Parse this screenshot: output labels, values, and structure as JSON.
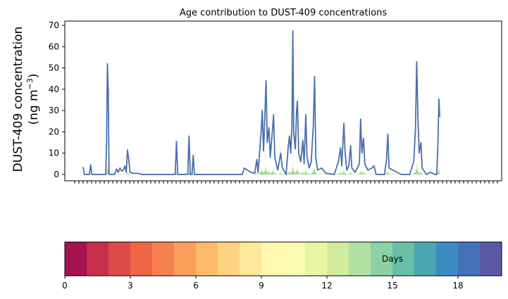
{
  "chart_data": [
    {
      "type": "area",
      "title": "Age contribution to DUST-409 concentrations",
      "ylabel_line1": "DUST-409 concentration",
      "ylabel_line2_prefix": "(ng m",
      "ylabel_line2_sup": "−3",
      "ylabel_line2_suffix": ")",
      "ylim": [
        -3,
        72
      ],
      "yticks": [
        0,
        10,
        20,
        30,
        40,
        50,
        60,
        70
      ],
      "grid": false,
      "x_index_range": [
        0,
        100
      ],
      "series": [
        {
          "values": [
            [
              0,
              3.5
            ],
            [
              0.3,
              0
            ],
            [
              1.5,
              0
            ],
            [
              1.8,
              4.5
            ],
            [
              2.1,
              0
            ],
            [
              4,
              0
            ],
            [
              5.4,
              0
            ],
            [
              5.6,
              15
            ],
            [
              5.8,
              52
            ],
            [
              6.0,
              40
            ],
            [
              6.2,
              0
            ],
            [
              7.5,
              0
            ],
            [
              8,
              2.5
            ],
            [
              8.4,
              1
            ],
            [
              8.8,
              3
            ],
            [
              9.2,
              1.5
            ],
            [
              9.6,
              2
            ],
            [
              10,
              4
            ],
            [
              10.3,
              1
            ],
            [
              10.6,
              11.5
            ],
            [
              10.9,
              7
            ],
            [
              11.2,
              1
            ],
            [
              12,
              0.5
            ],
            [
              13,
              0.5
            ],
            [
              14,
              0
            ],
            [
              22,
              0
            ],
            [
              22.3,
              15.5
            ],
            [
              22.6,
              0
            ],
            [
              25,
              0
            ],
            [
              25.3,
              18
            ],
            [
              25.6,
              0
            ],
            [
              26,
              0
            ],
            [
              26.3,
              9
            ],
            [
              26.6,
              0
            ],
            [
              38,
              0
            ],
            [
              38.5,
              3
            ],
            [
              40,
              1
            ],
            [
              41,
              0.5
            ],
            [
              41.5,
              7
            ],
            [
              41.8,
              1
            ],
            [
              42.5,
              19
            ],
            [
              42.8,
              30
            ],
            [
              43.1,
              11
            ],
            [
              43.4,
              26
            ],
            [
              43.7,
              44
            ],
            [
              44,
              15
            ],
            [
              44.4,
              22
            ],
            [
              44.7,
              8
            ],
            [
              45.2,
              20
            ],
            [
              45.5,
              28
            ],
            [
              45.8,
              8
            ],
            [
              46.5,
              2
            ],
            [
              47.2,
              10
            ],
            [
              47.6,
              3
            ],
            [
              48.5,
              0
            ],
            [
              49,
              13
            ],
            [
              49.3,
              18
            ],
            [
              49.6,
              10
            ],
            [
              49.9,
              23
            ],
            [
              50.1,
              67.5
            ],
            [
              50.3,
              20
            ],
            [
              50.7,
              12
            ],
            [
              51.0,
              30
            ],
            [
              51.2,
              34.5
            ],
            [
              51.5,
              10
            ],
            [
              52,
              6
            ],
            [
              52.5,
              16
            ],
            [
              52.8,
              5
            ],
            [
              53.2,
              28
            ],
            [
              53.5,
              8
            ],
            [
              54,
              3
            ],
            [
              54.5,
              6
            ],
            [
              55,
              23
            ],
            [
              55.3,
              46
            ],
            [
              55.6,
              8
            ],
            [
              56,
              2
            ],
            [
              57,
              3
            ],
            [
              58,
              0.5
            ],
            [
              60,
              0
            ],
            [
              61,
              6
            ],
            [
              61.5,
              12.5
            ],
            [
              61.8,
              4
            ],
            [
              62.3,
              24
            ],
            [
              62.6,
              10
            ],
            [
              63,
              2
            ],
            [
              63.5,
              4
            ],
            [
              63.9,
              13.5
            ],
            [
              64.2,
              3
            ],
            [
              65,
              1
            ],
            [
              66,
              5
            ],
            [
              66.3,
              26
            ],
            [
              66.6,
              10
            ],
            [
              67,
              17
            ],
            [
              67.3,
              5
            ],
            [
              68,
              2
            ],
            [
              69,
              3
            ],
            [
              69.5,
              4
            ],
            [
              70,
              0
            ],
            [
              72,
              0
            ],
            [
              72.5,
              7
            ],
            [
              72.8,
              19
            ],
            [
              73.1,
              3
            ],
            [
              75,
              1
            ],
            [
              76,
              0
            ],
            [
              78,
              0
            ],
            [
              79,
              6
            ],
            [
              79.4,
              21
            ],
            [
              79.7,
              53
            ],
            [
              80,
              26
            ],
            [
              80.3,
              10
            ],
            [
              80.7,
              15
            ],
            [
              81,
              3
            ],
            [
              82,
              0
            ],
            [
              83,
              1
            ],
            [
              84,
              0
            ],
            [
              84.5,
              0
            ],
            [
              84.8,
              16
            ],
            [
              85,
              35.5
            ],
            [
              85.2,
              27
            ]
          ]
        }
      ],
      "colorbar": {
        "label": "Days",
        "range": [
          0,
          20
        ],
        "ticks": [
          0,
          3,
          6,
          9,
          12,
          15,
          18
        ],
        "colors": [
          "#a6124f",
          "#c62f4a",
          "#dd4b4b",
          "#ee6445",
          "#f88150",
          "#fb9f5c",
          "#fdbb6c",
          "#fdd281",
          "#fee89a",
          "#fff8b0",
          "#f8fbb1",
          "#e8f5a1",
          "#d1ec9c",
          "#b2e0a2",
          "#8dd1a4",
          "#67bfa8",
          "#4aa6b1",
          "#3b8bc0",
          "#4172b8",
          "#5a59a5"
        ]
      }
    }
  ]
}
